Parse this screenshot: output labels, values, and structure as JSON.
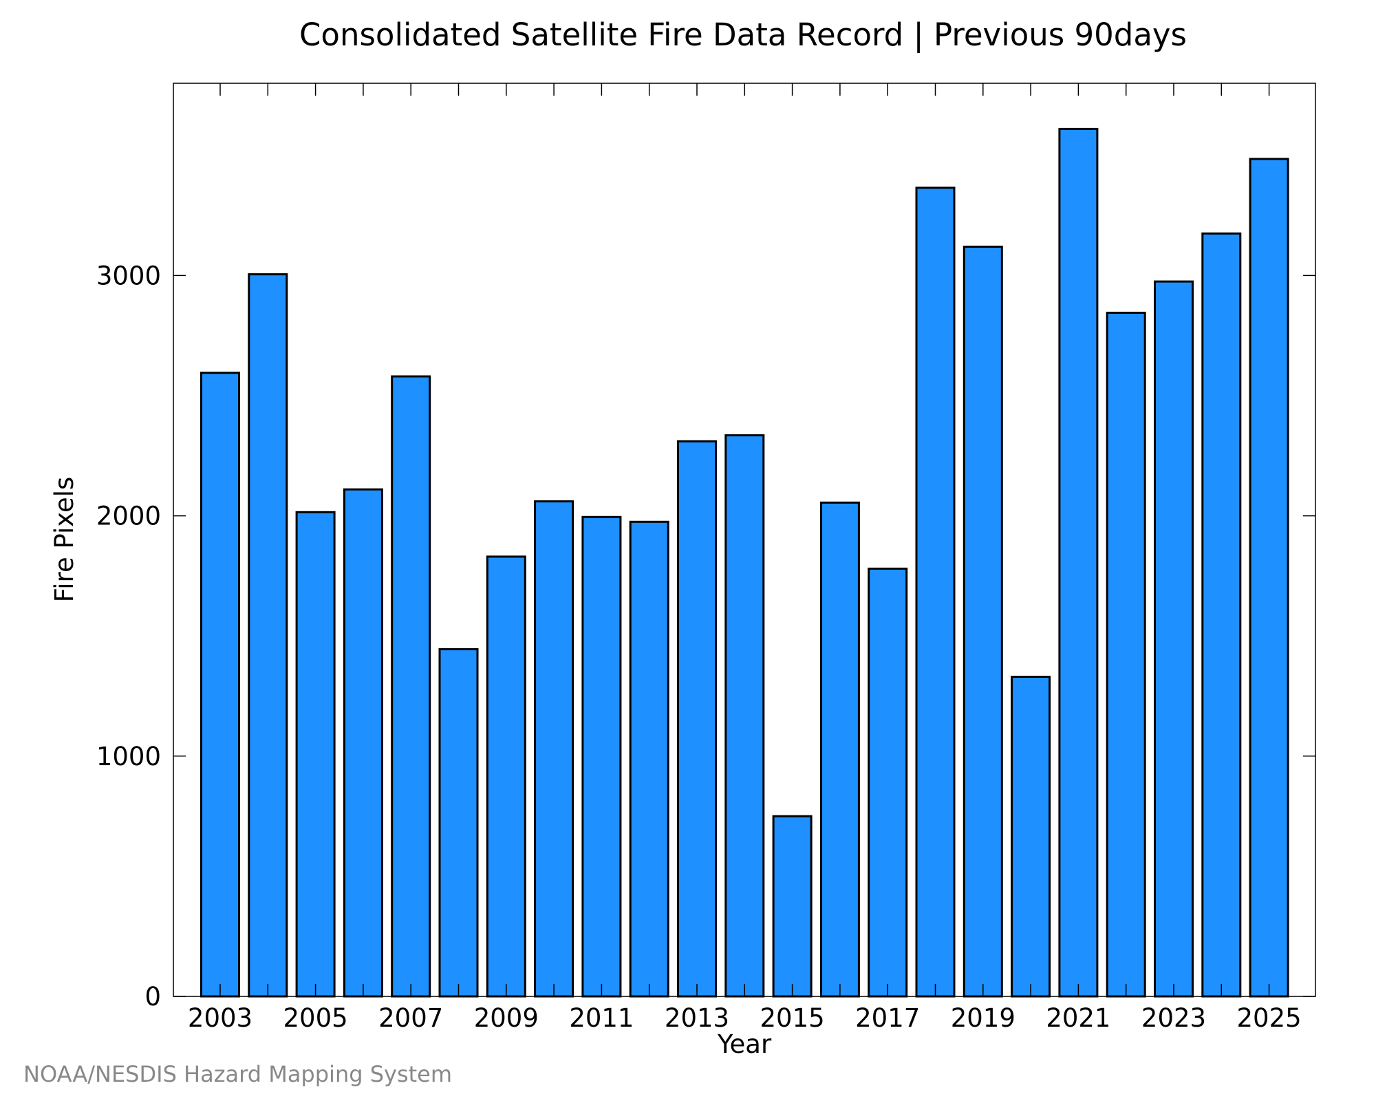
{
  "chart_data": {
    "type": "bar",
    "title": "Consolidated Satellite Fire Data Record | Previous 90days",
    "xlabel": "Year",
    "ylabel": "Fire Pixels",
    "credit": "NOAA/NESDIS Hazard Mapping System",
    "categories": [
      "2003",
      "2004",
      "2005",
      "2006",
      "2007",
      "2008",
      "2009",
      "2010",
      "2011",
      "2012",
      "2013",
      "2014",
      "2015",
      "2016",
      "2017",
      "2018",
      "2019",
      "2020",
      "2021",
      "2022",
      "2023",
      "2024",
      "2025"
    ],
    "x_tick_labels": [
      "2003",
      "2005",
      "2007",
      "2009",
      "2011",
      "2013",
      "2015",
      "2017",
      "2019",
      "2021",
      "2023",
      "2025"
    ],
    "values": [
      2595,
      3005,
      2015,
      2110,
      2580,
      1445,
      1830,
      2060,
      1995,
      1975,
      2310,
      2335,
      750,
      2055,
      1780,
      3365,
      3120,
      1330,
      3610,
      2845,
      2975,
      3175,
      3485
    ],
    "yticks": [
      0,
      1000,
      2000,
      3000
    ],
    "ylim": [
      0,
      3800
    ],
    "grid": false,
    "bar_color": "#1e90ff",
    "bar_edge_color": "#000000"
  }
}
